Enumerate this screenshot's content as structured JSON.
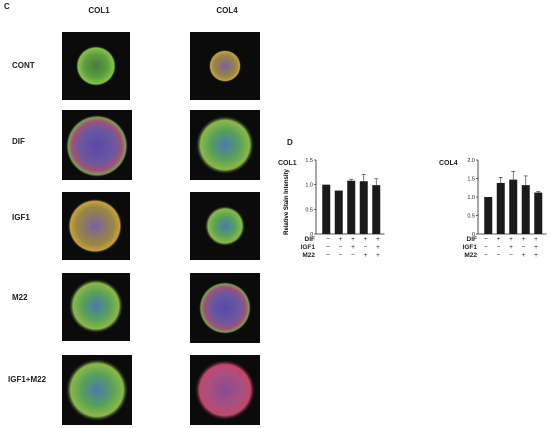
{
  "panel_c": {
    "letter": "C",
    "columns": [
      "COL1",
      "COL4"
    ],
    "rows": [
      "CONT",
      "DIF",
      "IGF1",
      "M22",
      "IGF1+M22"
    ]
  },
  "panel_d": {
    "letter": "D",
    "condition_labels": [
      "DIF",
      "IGF1",
      "M22"
    ]
  },
  "chart_data": [
    {
      "type": "bar",
      "title": "COL1",
      "ylabel": "Relative Stain Intensity",
      "ylim": [
        0,
        1.5
      ],
      "yticks": [
        0,
        0.5,
        1.0,
        1.5
      ],
      "ytick_labels": [
        "0",
        "0.5",
        "1.0",
        "1.5"
      ],
      "values": [
        1.0,
        0.88,
        1.08,
        1.07,
        0.99
      ],
      "errors": [
        0,
        0,
        0.03,
        0.14,
        0.13
      ],
      "conditions": {
        "DIF": [
          "−",
          "+",
          "+",
          "+",
          "+"
        ],
        "IGF1": [
          "−",
          "−",
          "+",
          "−",
          "+"
        ],
        "M22": [
          "−",
          "−",
          "−",
          "+",
          "+"
        ]
      }
    },
    {
      "type": "bar",
      "title": "COL4",
      "ylabel": "",
      "ylim": [
        0,
        2.0
      ],
      "yticks": [
        0,
        0.5,
        1.0,
        1.5,
        2.0
      ],
      "ytick_labels": [
        "0",
        "0.5",
        "1.0",
        "1.5",
        "2.0"
      ],
      "values": [
        1.0,
        1.38,
        1.47,
        1.32,
        1.12
      ],
      "errors": [
        0,
        0.15,
        0.22,
        0.25,
        0.03
      ],
      "conditions": {
        "DIF": [
          "−",
          "+",
          "+",
          "+",
          "+"
        ],
        "IGF1": [
          "−",
          "−",
          "+",
          "−",
          "+"
        ],
        "M22": [
          "−",
          "−",
          "−",
          "+",
          "+"
        ]
      }
    }
  ]
}
